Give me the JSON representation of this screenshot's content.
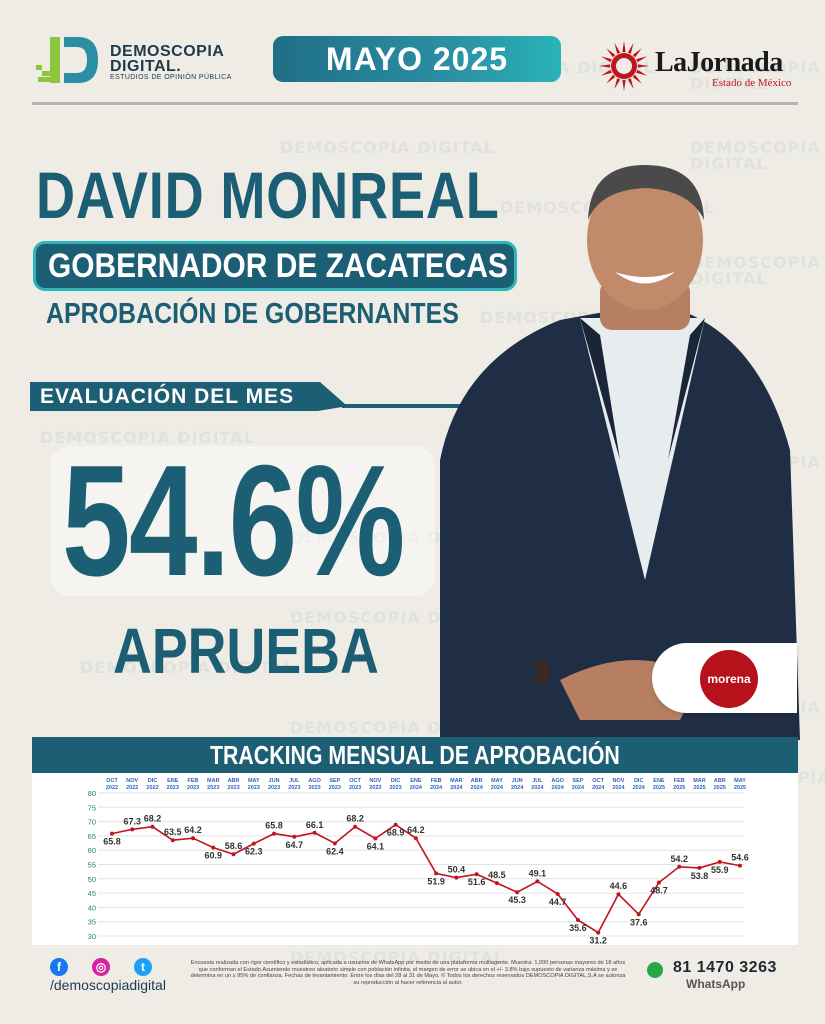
{
  "header": {
    "brand_line1": "DEMOSCOPIA",
    "brand_line2": "DIGITAL.",
    "brand_tagline": "ESTUDIOS DE OPINIÓN PÚBLICA",
    "month": "MAYO 2025",
    "partner_name": "LaJornada",
    "partner_sub": "Estado de México"
  },
  "watermark": "DEMOSCOPIA DIGITAL",
  "title": {
    "name": "DAVID MONREAL",
    "role": "GOBERNADOR DE ZACATECAS",
    "subtitle": "APROBACIÓN DE GOBERNANTES"
  },
  "evaluation": {
    "label": "EVALUACIÓN DEL MES",
    "value": "54.6%",
    "caption": "APRUEBA"
  },
  "party": {
    "label": "morena",
    "color": "#b5121b"
  },
  "colors": {
    "primary": "#1c5e73",
    "accent": "#2bb5ba",
    "line": "#c0151d"
  },
  "chart_data": {
    "type": "line",
    "title": "TRACKING MENSUAL DE APROBACIÓN",
    "categories": [
      [
        "OCT",
        "2022"
      ],
      [
        "NOV",
        "2022"
      ],
      [
        "DIC",
        "2022"
      ],
      [
        "ENE",
        "2023"
      ],
      [
        "FEB",
        "2023"
      ],
      [
        "MAR",
        "2023"
      ],
      [
        "ABR",
        "2023"
      ],
      [
        "MAY",
        "2023"
      ],
      [
        "JUN",
        "2023"
      ],
      [
        "JUL",
        "2023"
      ],
      [
        "AGO",
        "2023"
      ],
      [
        "SEP",
        "2023"
      ],
      [
        "OCT",
        "2023"
      ],
      [
        "NOV",
        "2023"
      ],
      [
        "DIC",
        "2023"
      ],
      [
        "ENE",
        "2024"
      ],
      [
        "FEB",
        "2024"
      ],
      [
        "MAR",
        "2024"
      ],
      [
        "ABR",
        "2024"
      ],
      [
        "MAY",
        "2024"
      ],
      [
        "JUN",
        "2024"
      ],
      [
        "JUL",
        "2024"
      ],
      [
        "AGO",
        "2024"
      ],
      [
        "SEP",
        "2024"
      ],
      [
        "OCT",
        "2024"
      ],
      [
        "NOV",
        "2024"
      ],
      [
        "DIC",
        "2024"
      ],
      [
        "ENE",
        "2025"
      ],
      [
        "FEB",
        "2025"
      ],
      [
        "MAR",
        "2025"
      ],
      [
        "ABR",
        "2025"
      ],
      [
        "MAY",
        "2025"
      ]
    ],
    "values": [
      65.8,
      67.3,
      68.2,
      63.5,
      64.2,
      60.9,
      58.6,
      62.3,
      65.8,
      64.7,
      66.1,
      62.4,
      68.2,
      64.1,
      68.9,
      64.2,
      51.9,
      50.4,
      51.6,
      48.5,
      45.3,
      49.1,
      44.7,
      35.6,
      31.2,
      44.6,
      37.6,
      48.7,
      54.2,
      53.8,
      55.9,
      54.6
    ],
    "labels_above": [
      false,
      true,
      true,
      true,
      true,
      false,
      true,
      false,
      true,
      false,
      true,
      false,
      true,
      false,
      false,
      true,
      false,
      true,
      false,
      true,
      false,
      true,
      false,
      false,
      false,
      true,
      false,
      false,
      true,
      false,
      false,
      true
    ],
    "yticks": [
      30,
      35,
      40,
      45,
      50,
      55,
      60,
      65,
      70,
      75,
      80
    ],
    "ylim": [
      30,
      80
    ],
    "grid": true
  },
  "footer": {
    "social": [
      "f",
      "◎",
      "t"
    ],
    "handle": "/demoscopiadigital",
    "legal": "Encuesta realizada con rigor científico y estadístico, aplicada a usuarios de WhatsApp por medio de una plataforma multiagente. Muestra: 1,000 personas mayores de 18 años que conforman el Estado.Asumiendo muestreo aleatorio simple con población infinita, el margen de error se ubica en el +/- 3.8% bajo supuesto de varianza máxima y se determina en un ≥ 95% de confianza. Fechas de levantamiento: Entre los días del 28 al 31 de Mayo. © Todos los derechos reservados DEMOSCOPIA DIGITAL,S.A se autoriza su reproducción al hacer referencia al autor.",
    "phone": "81 1470 3263",
    "phone_label": "WhatsApp"
  }
}
